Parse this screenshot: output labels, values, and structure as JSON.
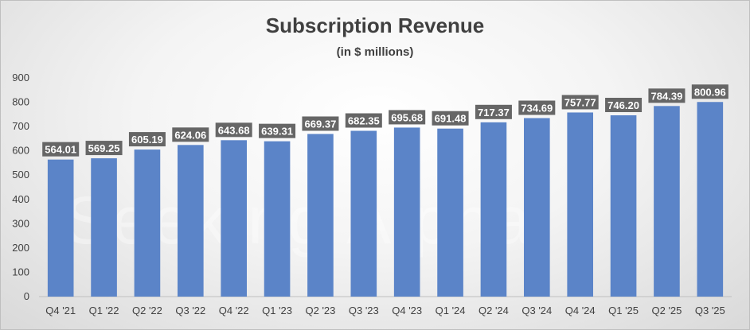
{
  "chart_data": {
    "type": "bar",
    "title": "Subscription Revenue",
    "subtitle": "(in $ millions)",
    "xlabel": "",
    "ylabel": "",
    "categories": [
      "Q4 '21",
      "Q1 '22",
      "Q2 '22",
      "Q3 '22",
      "Q4 '22",
      "Q1 '23",
      "Q2 '23",
      "Q3 '23",
      "Q4 '23",
      "Q1 '24",
      "Q2 '24",
      "Q3 '24",
      "Q4 '24",
      "Q1 '25",
      "Q2 '25",
      "Q3 '25"
    ],
    "values": [
      564.01,
      569.25,
      605.19,
      624.06,
      643.68,
      639.31,
      669.37,
      682.35,
      695.68,
      691.48,
      717.37,
      734.69,
      757.77,
      746.2,
      784.39,
      800.96
    ],
    "data_labels": [
      "564.01",
      "569.25",
      "605.19",
      "624.06",
      "643.68",
      "639.31",
      "669.37",
      "682.35",
      "695.68",
      "691.48",
      "717.37",
      "734.69",
      "757.77",
      "746.20",
      "784.39",
      "800.96"
    ],
    "ylim": [
      0,
      900
    ],
    "yticks": [
      0,
      100,
      200,
      300,
      400,
      500,
      600,
      700,
      800,
      900
    ],
    "grid": false,
    "legend": "none",
    "colors": {
      "bar": "#5b84c8",
      "label_bg": "#666666",
      "label_text": "#ffffff"
    }
  },
  "watermark": "Seeking Alpha"
}
